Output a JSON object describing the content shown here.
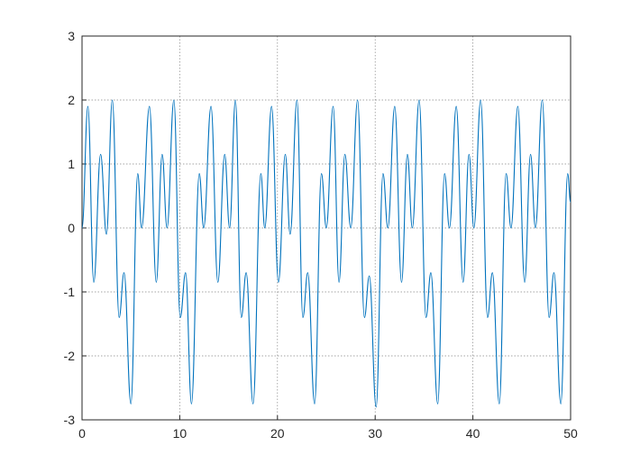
{
  "chart_data": {
    "type": "line",
    "x": [
      0,
      0.6,
      1.2,
      1.9,
      2.5,
      3.1,
      3.8,
      4.3,
      5.0,
      5.7,
      6.1,
      6.9,
      7.6,
      8.2,
      8.7,
      9.4,
      10.05,
      10.6,
      11.2,
      12.0,
      12.45,
      13.2,
      13.9,
      14.6,
      15.1,
      15.7,
      16.3,
      16.8,
      17.5,
      18.3,
      18.7,
      19.4,
      20.1,
      20.8,
      21.3,
      22.0,
      22.6,
      23.1,
      23.8,
      24.5,
      25.0,
      25.7,
      26.3,
      26.9,
      27.5,
      28.2,
      28.9,
      29.4,
      30.1,
      30.8,
      31.3,
      32.0,
      32.7,
      33.3,
      33.8,
      34.5,
      35.2,
      35.7,
      36.4,
      37.1,
      37.6,
      38.3,
      39.0,
      39.6,
      40.1,
      40.8,
      41.5,
      42.0,
      42.7,
      43.4,
      43.9,
      44.6,
      45.3,
      45.9,
      46.4,
      47.1,
      47.8,
      48.3,
      49.0,
      49.7,
      50
    ],
    "series": [
      {
        "color": "#0072bd",
        "values": [
          0,
          1.9,
          -0.85,
          1.15,
          -0.1,
          2.0,
          -1.4,
          -0.7,
          -2.75,
          0.85,
          0,
          1.9,
          -0.85,
          1.15,
          0,
          2.0,
          -1.4,
          -0.7,
          -2.75,
          0.85,
          0,
          1.9,
          -0.85,
          1.15,
          0,
          2.0,
          -1.4,
          -0.7,
          -2.75,
          0.85,
          0,
          1.9,
          -0.85,
          1.15,
          -0.1,
          2.0,
          -1.4,
          -0.7,
          -2.75,
          0.85,
          0,
          1.9,
          -0.85,
          1.15,
          0,
          2.0,
          -1.4,
          -0.75,
          -2.8,
          0.85,
          0,
          1.9,
          -0.85,
          1.15,
          0,
          2.0,
          -1.4,
          -0.7,
          -2.75,
          0.85,
          0,
          1.9,
          -0.85,
          1.15,
          0,
          2.0,
          -1.4,
          -0.7,
          -2.75,
          0.85,
          0,
          1.9,
          -0.85,
          1.15,
          0,
          2.0,
          -1.4,
          -0.7,
          -2.75,
          0.85,
          0.4
        ]
      }
    ],
    "xlim": [
      0,
      50
    ],
    "xticks": [
      0,
      10,
      20,
      30,
      40,
      50
    ],
    "ylim": [
      -3,
      3
    ],
    "yticks": [
      -3,
      -2,
      -1,
      0,
      1,
      2,
      3
    ],
    "grid": true
  }
}
